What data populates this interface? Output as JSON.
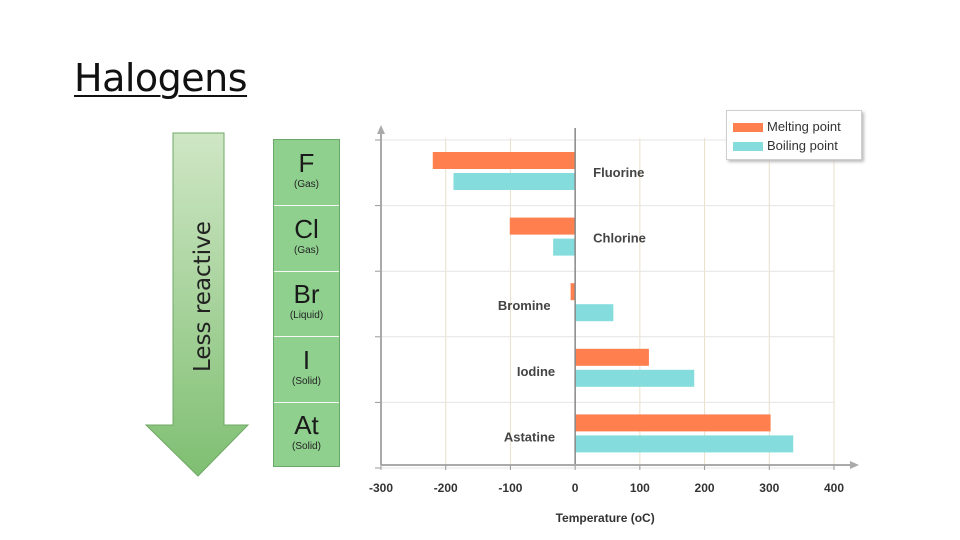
{
  "slide": {
    "title": "Halogens",
    "arrow_label": "Less reactive"
  },
  "elements": [
    {
      "symbol": "F",
      "state": "(Gas)"
    },
    {
      "symbol": "Cl",
      "state": "(Gas)"
    },
    {
      "symbol": "Br",
      "state": "(Liquid)"
    },
    {
      "symbol": "I",
      "state": "(Solid)"
    },
    {
      "symbol": "At",
      "state": "(Solid)"
    }
  ],
  "colors": {
    "melting": "#ff7f4f",
    "boiling": "#84dcdc",
    "arrow": "#93c98a",
    "element_column": "#8fd08f"
  },
  "chart_data": {
    "type": "bar",
    "orientation": "horizontal",
    "categories": [
      "Fluorine",
      "Chlorine",
      "Bromine",
      "Iodine",
      "Astatine"
    ],
    "series": [
      {
        "name": "Melting point",
        "values": [
          -220,
          -101,
          -7,
          114,
          302
        ]
      },
      {
        "name": "Boiling point",
        "values": [
          -188,
          -34,
          59,
          184,
          337
        ]
      }
    ],
    "xlabel": "Temperature (oC)",
    "xlim": [
      -300,
      400
    ],
    "xticks": [
      "-300",
      "-200",
      "-100",
      "0",
      "100",
      "200",
      "300",
      "400"
    ],
    "grid": true,
    "legend_position": "top-right"
  }
}
